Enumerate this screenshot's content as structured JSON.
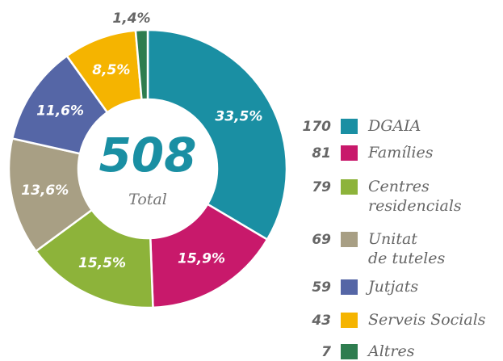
{
  "chart_data": {
    "type": "donut",
    "total": 508,
    "total_label": "Total",
    "categories": [
      [
        "DGAIA"
      ],
      [
        "Famílies"
      ],
      [
        "Centres",
        "residencials"
      ],
      [
        "Unitat",
        "de tuteles"
      ],
      [
        "Jutjats"
      ],
      [
        "Serveis Socials"
      ],
      [
        "Altres"
      ]
    ],
    "counts": [
      170,
      81,
      79,
      69,
      59,
      43,
      7
    ],
    "values": [
      33.5,
      15.9,
      15.5,
      13.6,
      11.6,
      8.5,
      1.4
    ],
    "value_labels": [
      "33,5%",
      "15,9%",
      "15,5%",
      "13,6%",
      "11,6%",
      "8,5%",
      "1,4%"
    ],
    "colors": [
      "#1a8fa3",
      "#c8196b",
      "#8db33a",
      "#a89f84",
      "#5566a6",
      "#f5b400",
      "#2e7d4f"
    ]
  }
}
